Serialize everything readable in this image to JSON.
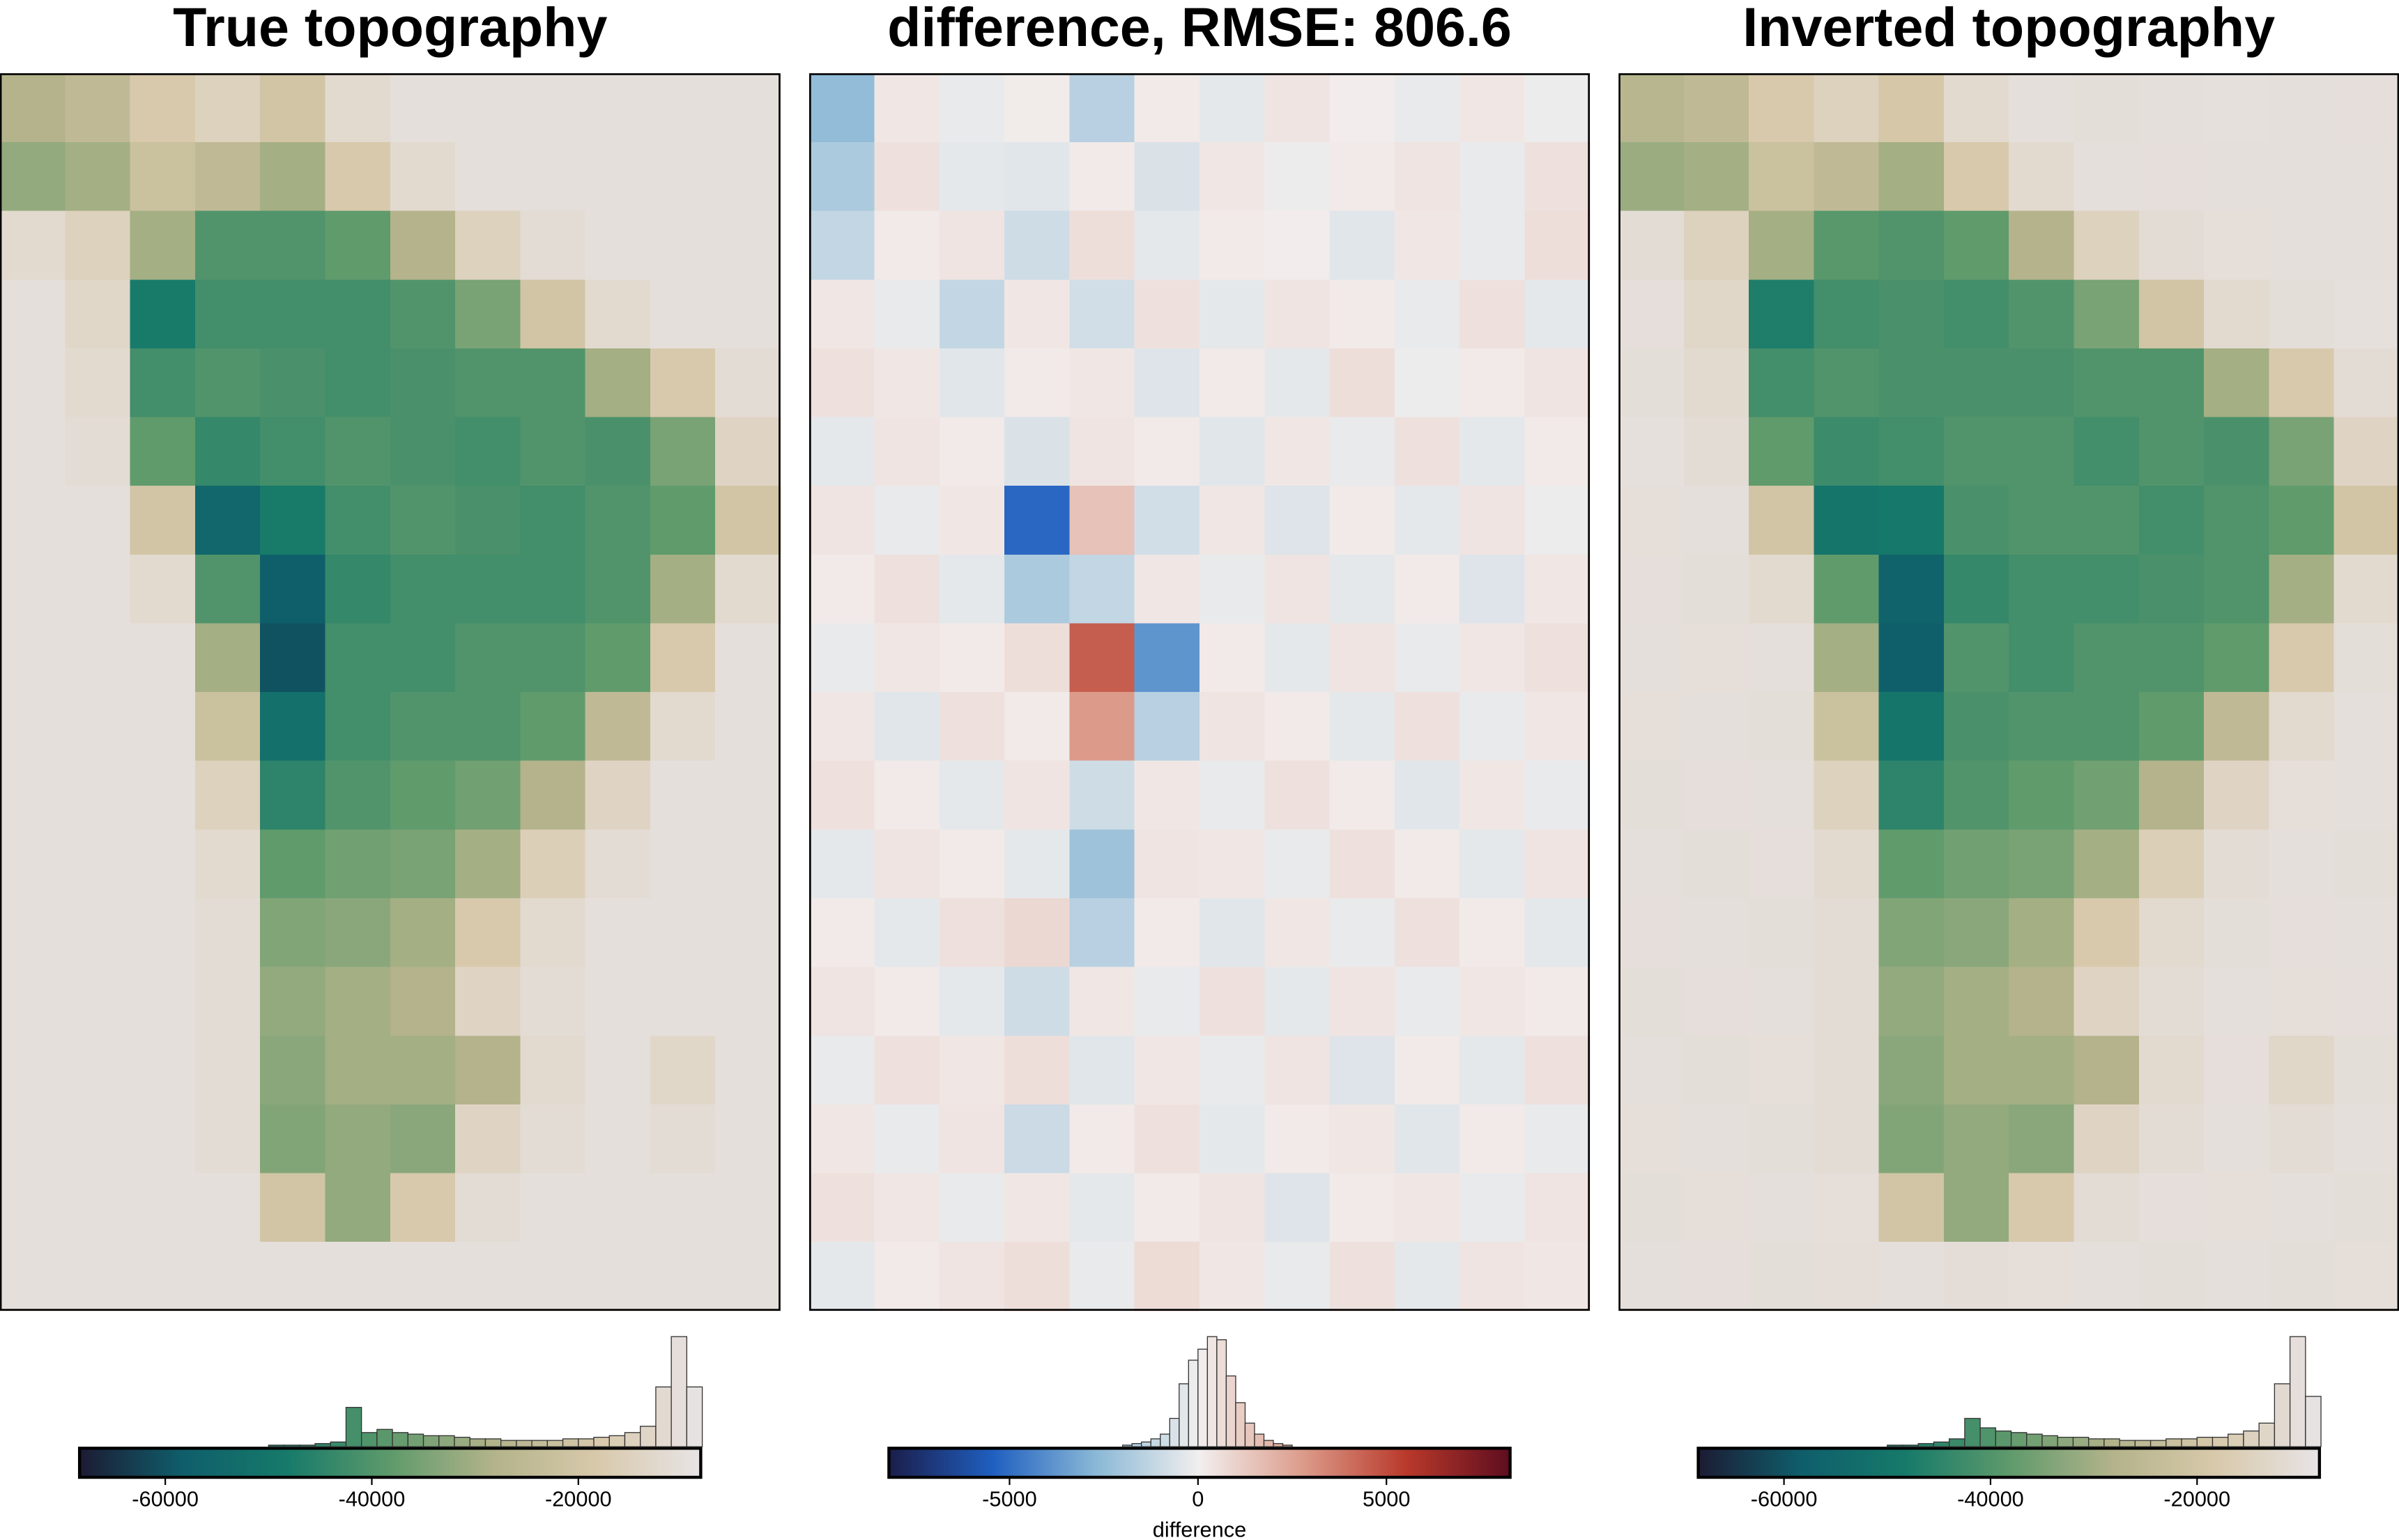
{
  "chart_data": [
    {
      "type": "heatmap",
      "title": "True topography",
      "colormap": [
        "#1c1b33",
        "#0f5e6b",
        "#167a6a",
        "#5e9a6b",
        "#b3b38a",
        "#d8c9ab",
        "#e8e4e6"
      ],
      "clim": [
        -68300,
        -8150
      ],
      "cticks": [
        -60000,
        -40000,
        -20000
      ],
      "z": [
        [
          -28000,
          -25000,
          -18000,
          -15000,
          -20000,
          -12000,
          -10000,
          -10000,
          -10000,
          -10000,
          -10000,
          -10000
        ],
        [
          -32000,
          -30000,
          -22000,
          -25000,
          -30000,
          -18000,
          -12000,
          -10000,
          -10000,
          -10000,
          -10000,
          -10000
        ],
        [
          -12000,
          -15000,
          -30000,
          -40000,
          -40000,
          -38000,
          -28000,
          -15000,
          -11000,
          -10000,
          -10000,
          -10000
        ],
        [
          -10000,
          -13000,
          -48000,
          -42000,
          -42000,
          -42000,
          -40000,
          -35000,
          -20000,
          -12000,
          -10000,
          -10000
        ],
        [
          -10000,
          -12000,
          -42000,
          -40000,
          -41000,
          -42000,
          -41000,
          -40000,
          -40000,
          -30000,
          -18000,
          -11000
        ],
        [
          -10000,
          -11000,
          -38000,
          -44000,
          -42000,
          -40000,
          -41000,
          -42000,
          -40000,
          -41000,
          -35000,
          -14000
        ],
        [
          -10000,
          -10000,
          -20000,
          -55000,
          -48000,
          -42000,
          -40000,
          -41000,
          -42000,
          -40000,
          -38000,
          -20000
        ],
        [
          -10000,
          -10000,
          -12000,
          -40000,
          -58000,
          -44000,
          -42000,
          -42000,
          -42000,
          -40000,
          -30000,
          -12000
        ],
        [
          -10000,
          -10000,
          -10000,
          -30000,
          -60000,
          -42000,
          -42000,
          -40000,
          -40000,
          -38000,
          -18000,
          -10000
        ],
        [
          -10000,
          -10000,
          -10000,
          -22000,
          -52000,
          -42000,
          -40000,
          -40000,
          -38000,
          -25000,
          -12000,
          -10000
        ],
        [
          -10000,
          -10000,
          -10000,
          -15000,
          -45000,
          -40000,
          -38000,
          -36000,
          -28000,
          -14000,
          -10000,
          -10000
        ],
        [
          -10000,
          -10000,
          -10000,
          -12000,
          -38000,
          -36000,
          -35000,
          -30000,
          -16000,
          -11000,
          -10000,
          -10000
        ],
        [
          -10000,
          -10000,
          -10000,
          -11000,
          -34000,
          -33000,
          -30000,
          -18000,
          -12000,
          -10000,
          -10000,
          -10000
        ],
        [
          -10000,
          -10000,
          -10000,
          -11000,
          -32000,
          -30000,
          -28000,
          -14000,
          -11000,
          -10000,
          -10000,
          -10000
        ],
        [
          -10000,
          -10000,
          -10000,
          -11000,
          -33000,
          -30000,
          -30000,
          -28000,
          -12000,
          -10000,
          -13000,
          -10000
        ],
        [
          -10000,
          -10000,
          -10000,
          -11000,
          -34000,
          -32000,
          -33000,
          -14000,
          -11000,
          -10000,
          -11000,
          -10000
        ],
        [
          -10000,
          -10000,
          -10000,
          -10000,
          -20000,
          -32000,
          -18000,
          -11000,
          -10000,
          -10000,
          -10000,
          -10000
        ],
        [
          -10000,
          -10000,
          -10000,
          -10000,
          -10000,
          -10000,
          -10000,
          -10000,
          -10000,
          -10000,
          -10000,
          -10000
        ]
      ],
      "histogram": {
        "bins": [
          -50000,
          -48500,
          -47000,
          -45500,
          -44000,
          -42500,
          -41000,
          -39500,
          -38000,
          -36500,
          -35000,
          -33500,
          -32000,
          -30500,
          -29000,
          -27500,
          -26000,
          -24500,
          -23000,
          -21500,
          -20000,
          -18500,
          -17000,
          -15500,
          -14000,
          -12500,
          -11000,
          -9500,
          -8000
        ],
        "counts": [
          1,
          1,
          1,
          2,
          3,
          25,
          9,
          11,
          9,
          8,
          7,
          7,
          6,
          5,
          5,
          4,
          4,
          4,
          4,
          5,
          5,
          6,
          7,
          9,
          13,
          38,
          70,
          38
        ]
      }
    },
    {
      "type": "heatmap",
      "title": "difference, RMSE: 806.6",
      "colormap": [
        "#1b1d4a",
        "#1f5fc0",
        "#8ab8d6",
        "#f2efee",
        "#dc9b8a",
        "#b9392b",
        "#5e0d1f"
      ],
      "clim": [
        -8200,
        8280
      ],
      "cticks": [
        -5000,
        0,
        5000
      ],
      "colorbar_label": "difference",
      "z": [
        [
          -2500,
          300,
          -200,
          150,
          -1500,
          200,
          -300,
          400,
          100,
          -200,
          300,
          -100
        ],
        [
          -1800,
          500,
          -300,
          -400,
          200,
          -600,
          300,
          -100,
          200,
          400,
          -200,
          500
        ],
        [
          -1200,
          200,
          400,
          -900,
          600,
          -300,
          200,
          100,
          -400,
          300,
          -200,
          600
        ],
        [
          300,
          -200,
          -1200,
          300,
          -800,
          500,
          -300,
          400,
          200,
          -200,
          500,
          -300
        ],
        [
          500,
          300,
          -400,
          200,
          300,
          -500,
          200,
          -300,
          600,
          -100,
          200,
          400
        ],
        [
          -300,
          400,
          200,
          -600,
          400,
          200,
          -400,
          300,
          -200,
          500,
          -300,
          200
        ],
        [
          400,
          -200,
          300,
          -5200,
          1500,
          -800,
          300,
          -500,
          200,
          -300,
          400,
          -100
        ],
        [
          200,
          500,
          -300,
          -1800,
          -1200,
          300,
          -200,
          400,
          -300,
          200,
          -500,
          300
        ],
        [
          -200,
          300,
          200,
          600,
          4500,
          -3800,
          200,
          -300,
          400,
          -200,
          300,
          500
        ],
        [
          300,
          -400,
          500,
          200,
          2800,
          -1500,
          400,
          200,
          -300,
          500,
          -200,
          300
        ],
        [
          500,
          200,
          -300,
          400,
          -900,
          300,
          -200,
          500,
          200,
          -400,
          300,
          -200
        ],
        [
          -300,
          400,
          200,
          -300,
          -2200,
          400,
          300,
          -200,
          500,
          200,
          -300,
          400
        ],
        [
          200,
          -300,
          500,
          800,
          -1500,
          200,
          -400,
          300,
          -200,
          500,
          200,
          -300
        ],
        [
          400,
          200,
          -300,
          -900,
          300,
          -200,
          500,
          -300,
          400,
          -200,
          300,
          200
        ],
        [
          -200,
          500,
          300,
          600,
          -400,
          300,
          -200,
          400,
          -500,
          200,
          -300,
          500
        ],
        [
          300,
          -200,
          400,
          -1000,
          200,
          500,
          -300,
          200,
          300,
          -400,
          200,
          -200
        ],
        [
          500,
          300,
          -200,
          300,
          -300,
          200,
          400,
          -500,
          200,
          300,
          -200,
          400
        ],
        [
          -300,
          200,
          400,
          600,
          -200,
          700,
          300,
          -200,
          500,
          -300,
          400,
          300
        ]
      ],
      "histogram": {
        "bins": [
          -2000,
          -1750,
          -1500,
          -1250,
          -1000,
          -750,
          -500,
          -250,
          0,
          250,
          500,
          750,
          1000,
          1250,
          1500,
          1750,
          2000,
          2250,
          2500
        ],
        "counts": [
          1,
          2,
          3,
          5,
          8,
          18,
          40,
          55,
          62,
          70,
          68,
          45,
          28,
          15,
          8,
          4,
          2,
          1
        ]
      }
    },
    {
      "type": "heatmap",
      "title": "Inverted topography",
      "colormap": [
        "#1c1b33",
        "#0f5e6b",
        "#167a6a",
        "#5e9a6b",
        "#b3b38a",
        "#d8c9ab",
        "#e8e4e6"
      ],
      "clim": [
        -68300,
        -8150
      ],
      "cticks": [
        -60000,
        -40000,
        -20000
      ],
      "z": [
        [
          -27000,
          -25000,
          -18000,
          -15000,
          -19000,
          -12000,
          -10000,
          -10500,
          -10000,
          -9800,
          -10000,
          -10200
        ],
        [
          -31000,
          -30000,
          -22000,
          -25000,
          -30000,
          -18000,
          -12000,
          -10000,
          -10200,
          -10000,
          -9900,
          -10000
        ],
        [
          -11000,
          -15000,
          -30000,
          -39000,
          -40000,
          -38000,
          -28000,
          -15000,
          -11000,
          -10300,
          -10000,
          -10000
        ],
        [
          -10200,
          -13000,
          -47000,
          -42000,
          -41000,
          -42000,
          -40000,
          -35000,
          -20000,
          -12000,
          -10400,
          -9800
        ],
        [
          -10400,
          -12000,
          -42000,
          -40000,
          -41000,
          -41000,
          -41000,
          -40000,
          -40000,
          -30000,
          -18000,
          -11000
        ],
        [
          -9800,
          -11000,
          -38000,
          -43000,
          -42000,
          -40000,
          -40000,
          -42000,
          -40000,
          -41000,
          -35000,
          -14000
        ],
        [
          -10300,
          -10000,
          -20000,
          -50000,
          -49000,
          -41000,
          -40000,
          -40000,
          -42000,
          -40000,
          -38000,
          -20000
        ],
        [
          -10200,
          -10400,
          -12000,
          -38000,
          -57000,
          -44000,
          -42000,
          -42000,
          -41000,
          -40000,
          -30000,
          -12000
        ],
        [
          -10000,
          -10300,
          -10000,
          -30000,
          -58000,
          -40000,
          -42000,
          -40000,
          -40000,
          -38000,
          -18000,
          -10400
        ],
        [
          -10300,
          -10000,
          -10500,
          -22000,
          -50000,
          -41000,
          -40000,
          -40000,
          -38000,
          -25000,
          -12000,
          -10000
        ],
        [
          -10500,
          -10200,
          -10000,
          -15000,
          -45000,
          -40000,
          -38000,
          -36000,
          -28000,
          -14000,
          -10300,
          -10000
        ],
        [
          -10000,
          -10400,
          -10200,
          -12000,
          -38000,
          -36000,
          -35000,
          -30000,
          -16000,
          -11000,
          -10000,
          -10400
        ],
        [
          -10200,
          -10000,
          -10500,
          -11000,
          -34000,
          -33000,
          -30000,
          -18000,
          -12000,
          -10500,
          -10200,
          -10000
        ],
        [
          -10400,
          -10200,
          -10000,
          -11000,
          -32000,
          -30000,
          -28000,
          -14000,
          -11000,
          -10000,
          -10300,
          -10200
        ],
        [
          -10000,
          -10500,
          -10300,
          -11000,
          -33000,
          -30000,
          -30000,
          -28000,
          -12000,
          -10200,
          -13000,
          -10500
        ],
        [
          -10300,
          -10000,
          -10400,
          -11000,
          -34000,
          -32000,
          -33000,
          -14000,
          -11000,
          -10000,
          -11000,
          -10000
        ],
        [
          -10500,
          -10300,
          -10000,
          -10300,
          -20000,
          -32000,
          -18000,
          -11000,
          -10200,
          -10300,
          -10000,
          -10400
        ],
        [
          -10000,
          -10200,
          -10400,
          -10600,
          -10000,
          -10700,
          -10300,
          -10000,
          -10500,
          -10000,
          -10400,
          -10300
        ]
      ],
      "histogram": {
        "bins": [
          -50000,
          -48500,
          -47000,
          -45500,
          -44000,
          -42500,
          -41000,
          -39500,
          -38000,
          -36500,
          -35000,
          -33500,
          -32000,
          -30500,
          -29000,
          -27500,
          -26000,
          -24500,
          -23000,
          -21500,
          -20000,
          -18500,
          -17000,
          -15500,
          -14000,
          -12500,
          -11000,
          -9500,
          -8000
        ],
        "counts": [
          1,
          1,
          2,
          3,
          5,
          18,
          12,
          10,
          9,
          8,
          7,
          6,
          6,
          5,
          5,
          4,
          4,
          4,
          5,
          5,
          6,
          6,
          8,
          10,
          15,
          40,
          70,
          32
        ]
      }
    }
  ]
}
